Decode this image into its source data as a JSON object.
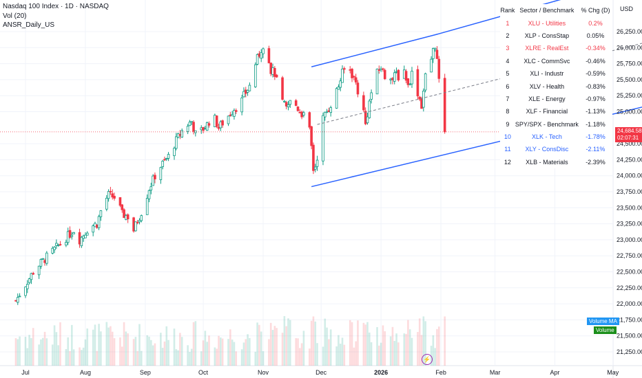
{
  "header": {
    "title": "Nasdaq 100 Index · 1D · NASDAQ",
    "indicator1": "Vol (20)",
    "indicator2": "ANSR_Daily_US"
  },
  "currency": "USD",
  "price_tag": {
    "price": "24,684.58",
    "countdown": "02:07:31",
    "value": 24684.58,
    "color": "#f23645"
  },
  "volume_tags": {
    "ma": "Volume MA",
    "volume": "Volume"
  },
  "colors": {
    "up": "#089981",
    "down": "#f23645",
    "channel": "#2962ff",
    "midline": "#787b86",
    "blue_text": "#2962ff",
    "red_text": "#f23645"
  },
  "table": {
    "headers": [
      "Rank",
      "Sector / Benchmark",
      "% Chg (D)"
    ],
    "rows": [
      {
        "rank": "1",
        "name": "XLU - Utilities",
        "chg": "0.2%",
        "color": "red"
      },
      {
        "rank": "2",
        "name": "XLP - ConsStap",
        "chg": "0.05%",
        "color": "black"
      },
      {
        "rank": "3",
        "name": "XLRE - RealEst",
        "chg": "-0.34%",
        "color": "red"
      },
      {
        "rank": "4",
        "name": "XLC - CommSvc",
        "chg": "-0.46%",
        "color": "black"
      },
      {
        "rank": "5",
        "name": "XLI - Industr",
        "chg": "-0.59%",
        "color": "black"
      },
      {
        "rank": "6",
        "name": "XLV - Health",
        "chg": "-0.83%",
        "color": "black"
      },
      {
        "rank": "7",
        "name": "XLE - Energy",
        "chg": "-0.97%",
        "color": "black"
      },
      {
        "rank": "8",
        "name": "XLF - Financial",
        "chg": "-1.13%",
        "color": "black"
      },
      {
        "rank": "9",
        "name": "SPY/SPX - Benchmark",
        "chg": "-1.18%",
        "color": "black"
      },
      {
        "rank": "10",
        "name": "XLK - Tech",
        "chg": "-1.78%",
        "color": "blue"
      },
      {
        "rank": "11",
        "name": "XLY - ConsDisc",
        "chg": "-2.11%",
        "color": "blue"
      },
      {
        "rank": "12",
        "name": "XLB - Materials",
        "chg": "-2.39%",
        "color": "black"
      }
    ]
  },
  "chart_data": {
    "type": "candlestick",
    "title": "Nasdaq 100 Index · 1D · NASDAQ",
    "y_ticks": [
      21250,
      21500,
      21750,
      22000,
      22250,
      22500,
      22750,
      23000,
      23250,
      23500,
      23750,
      24000,
      24250,
      24500,
      25000,
      25250,
      25500,
      25750,
      26000,
      26250
    ],
    "ylim": [
      21100,
      26500
    ],
    "x_ticks": [
      "Jul",
      "Aug",
      "Sep",
      "Oct",
      "Nov",
      "Dec",
      "2026",
      "Feb",
      "Mar",
      "Apr",
      "May"
    ],
    "x_tick_days": [
      0,
      31,
      62,
      92,
      123,
      153,
      184,
      215,
      243,
      274,
      304
    ],
    "price_path": [
      [
        -5,
        22050
      ],
      [
        0,
        22300
      ],
      [
        5,
        22550
      ],
      [
        10,
        22700
      ],
      [
        15,
        22850
      ],
      [
        20,
        23000
      ],
      [
        25,
        23150
      ],
      [
        28,
        23000
      ],
      [
        33,
        23200
      ],
      [
        37,
        23250
      ],
      [
        40,
        23550
      ],
      [
        43,
        23700
      ],
      [
        47,
        23650
      ],
      [
        50,
        23400
      ],
      [
        54,
        23350
      ],
      [
        56,
        23150
      ],
      [
        58,
        23300
      ],
      [
        61,
        23500
      ],
      [
        64,
        23800
      ],
      [
        67,
        24000
      ],
      [
        70,
        24150
      ],
      [
        74,
        24300
      ],
      [
        78,
        24550
      ],
      [
        82,
        24750
      ],
      [
        86,
        24850
      ],
      [
        88,
        24650
      ],
      [
        91,
        24700
      ],
      [
        94,
        24800
      ],
      [
        97,
        24950
      ],
      [
        100,
        24750
      ],
      [
        104,
        24900
      ],
      [
        108,
        25050
      ],
      [
        111,
        25100
      ],
      [
        113,
        25250
      ],
      [
        116,
        25400
      ],
      [
        119,
        25750
      ],
      [
        121,
        25900
      ],
      [
        123,
        26050
      ],
      [
        125,
        25950
      ],
      [
        127,
        25650
      ],
      [
        129,
        25600
      ],
      [
        131,
        25350
      ],
      [
        133,
        25150
      ],
      [
        135,
        25050
      ],
      [
        138,
        25200
      ],
      [
        141,
        25050
      ],
      [
        145,
        24900
      ],
      [
        147,
        24700
      ],
      [
        148,
        24450
      ],
      [
        149,
        24100
      ],
      [
        150,
        24150
      ],
      [
        151,
        24300
      ],
      [
        152,
        24550
      ],
      [
        154,
        24900
      ],
      [
        157,
        25050
      ],
      [
        160,
        25250
      ],
      [
        162,
        25400
      ],
      [
        164,
        25600
      ],
      [
        166,
        25700
      ],
      [
        168,
        25650
      ],
      [
        171,
        25450
      ],
      [
        173,
        25200
      ],
      [
        175,
        25000
      ],
      [
        176,
        24800
      ],
      [
        178,
        25150
      ],
      [
        180,
        25450
      ],
      [
        182,
        25600
      ],
      [
        184,
        25700
      ],
      [
        186,
        25550
      ],
      [
        188,
        25650
      ],
      [
        190,
        25500
      ],
      [
        192,
        25600
      ],
      [
        194,
        25500
      ],
      [
        196,
        25650
      ],
      [
        198,
        25400
      ],
      [
        200,
        25600
      ],
      [
        203,
        25300
      ],
      [
        205,
        25100
      ],
      [
        207,
        25550
      ],
      [
        209,
        25700
      ],
      [
        211,
        25950
      ],
      [
        212,
        26050
      ],
      [
        213,
        25800
      ],
      [
        214,
        25450
      ],
      [
        215,
        25100
      ],
      [
        216,
        24800
      ],
      [
        217,
        24684.58
      ]
    ],
    "channel": {
      "upper": [
        [
          148,
          25700
        ],
        [
          212,
          26200
        ],
        [
          330,
          27200
        ]
      ],
      "lower": [
        [
          148,
          23830
        ],
        [
          330,
          25150
        ]
      ],
      "mid": [
        [
          151,
          24800
        ],
        [
          330,
          26150
        ]
      ]
    },
    "volume_note": "volume bars in lower pane with moving average"
  }
}
